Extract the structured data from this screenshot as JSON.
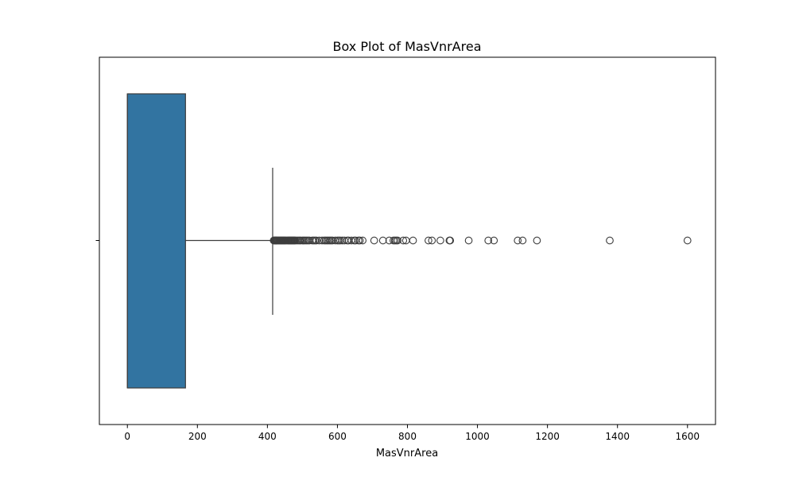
{
  "chart_data": {
    "type": "box",
    "orientation": "horizontal",
    "title": "Box Plot of MasVnrArea",
    "xlabel": "MasVnrArea",
    "ylabel": "",
    "xlim": [
      -80,
      1680
    ],
    "xticks": [
      "0",
      "200",
      "400",
      "600",
      "800",
      "1000",
      "1200",
      "1400",
      "1600"
    ],
    "grid": false,
    "series": [
      {
        "min": 0,
        "q1": 0,
        "median": 0,
        "q3": 166,
        "whisker_high": 415,
        "outliers": [
          418,
          420,
          421,
          423,
          424,
          425,
          426,
          428,
          430,
          432,
          434,
          436,
          438,
          440,
          442,
          444,
          446,
          448,
          450,
          452,
          455,
          458,
          460,
          462,
          464,
          466,
          468,
          470,
          472,
          474,
          476,
          478,
          480,
          484,
          488,
          492,
          495,
          500,
          504,
          508,
          512,
          516,
          520,
          528,
          532,
          536,
          540,
          548,
          556,
          562,
          566,
          570,
          574,
          578,
          582,
          586,
          594,
          600,
          604,
          608,
          614,
          620,
          628,
          632,
          640,
          648,
          652,
          660,
          664,
          672,
          705,
          730,
          748,
          760,
          764,
          768,
          772,
          788,
          796,
          816,
          860,
          870,
          894,
          920,
          922,
          975,
          1031,
          1047,
          1115,
          1129,
          1170,
          1378,
          1600
        ]
      }
    ],
    "colors": {
      "box_fill": "#3274a1",
      "line": "#3d3d3d",
      "axis": "#000000"
    }
  }
}
